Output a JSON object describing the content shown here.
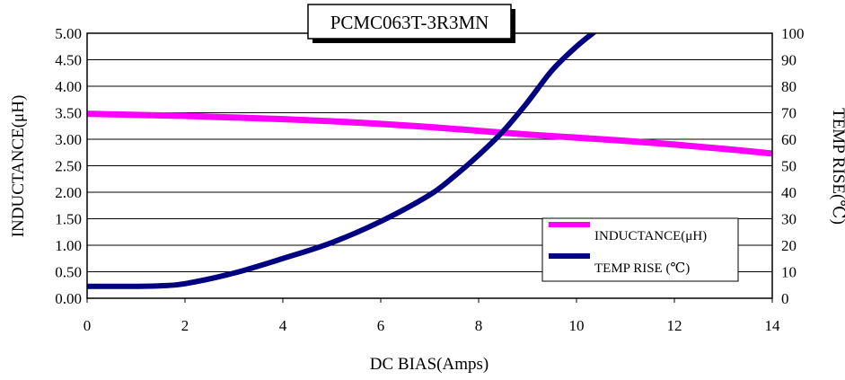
{
  "chart_data": {
    "type": "line",
    "title": "PCMC063T-3R3MN",
    "xlabel": "DC BIAS(Amps)",
    "ylabel": "INDUCTANCE(μH)",
    "y2label": "TEMP RISE(℃)",
    "xlim": [
      0,
      14
    ],
    "ylim": [
      0,
      5
    ],
    "y2lim": [
      0,
      100
    ],
    "x_ticks": [
      "0",
      "2",
      "4",
      "6",
      "8",
      "10",
      "12",
      "14"
    ],
    "y_ticks": [
      "0.00",
      "0.50",
      "1.00",
      "1.50",
      "2.00",
      "2.50",
      "3.00",
      "3.50",
      "4.00",
      "4.50",
      "5.00"
    ],
    "y2_ticks": [
      "0",
      "10",
      "20",
      "30",
      "40",
      "50",
      "60",
      "70",
      "80",
      "90",
      "100"
    ],
    "grid": true,
    "legend_position": "bottom-right",
    "series": [
      {
        "name": "INDUCTANCE(μH)",
        "axis": "left",
        "color": "#ff00ff",
        "x": [
          0,
          1,
          2,
          3,
          4,
          5,
          6,
          7,
          8,
          9,
          10,
          11,
          12,
          13,
          14
        ],
        "values": [
          3.48,
          3.46,
          3.44,
          3.41,
          3.38,
          3.34,
          3.29,
          3.23,
          3.16,
          3.09,
          3.03,
          2.97,
          2.9,
          2.82,
          2.73
        ]
      },
      {
        "name": "TEMP RISE (℃)",
        "axis": "right",
        "color": "#000080",
        "x": [
          0,
          1,
          1.5,
          2,
          3,
          4,
          5,
          6,
          7,
          7.5,
          8,
          8.5,
          9,
          9.5,
          10,
          10.4
        ],
        "values": [
          4.5,
          4.5,
          4.7,
          5.5,
          9.5,
          15,
          21,
          29,
          39,
          46,
          54,
          63,
          74,
          86,
          95,
          101
        ]
      }
    ]
  }
}
